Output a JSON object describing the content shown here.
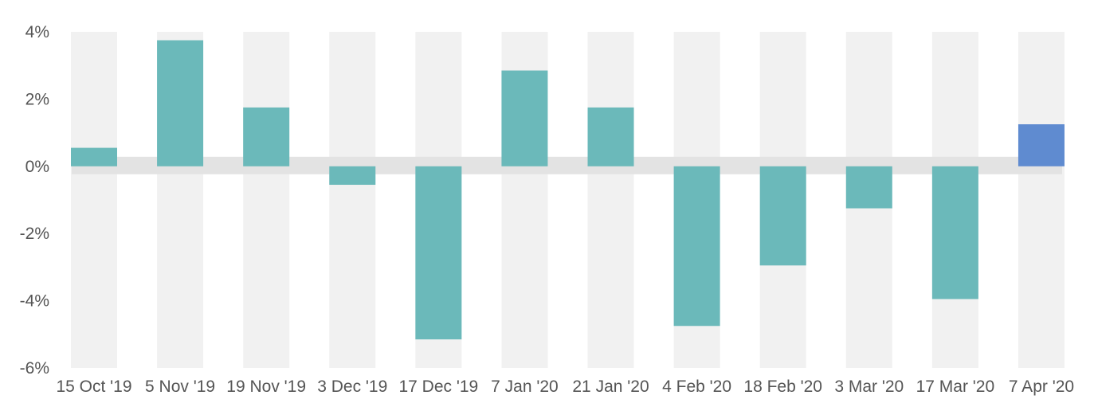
{
  "chart_data": {
    "type": "bar",
    "categories": [
      "15 Oct '19",
      "5 Nov '19",
      "19 Nov '19",
      "3 Dec '19",
      "17 Dec '19",
      "7 Jan '20",
      "21 Jan '20",
      "4 Feb '20",
      "18 Feb '20",
      "3 Mar '20",
      "17 Mar '20",
      "7 Apr '20"
    ],
    "series": [
      {
        "values": [
          0.55,
          3.75,
          1.75,
          -0.55,
          -5.15,
          2.85,
          1.75,
          -4.75,
          -2.95,
          -1.25,
          -3.95,
          1.25
        ]
      }
    ],
    "highlight_index": 11,
    "ylim": [
      -6,
      4
    ],
    "yticks": [
      -6,
      -4,
      -2,
      0,
      2,
      4
    ],
    "ytick_labels": [
      "-6%",
      "-4%",
      "-2%",
      "0%",
      "2%",
      "4%"
    ],
    "title": "",
    "xlabel": "",
    "ylabel": "",
    "colors": {
      "bar": "#6bb9ba",
      "highlight_bar": "#5f8bd0",
      "band": "#f1f1f1",
      "zero_band": "#e3e3e3",
      "axis_text": "#555555"
    }
  }
}
